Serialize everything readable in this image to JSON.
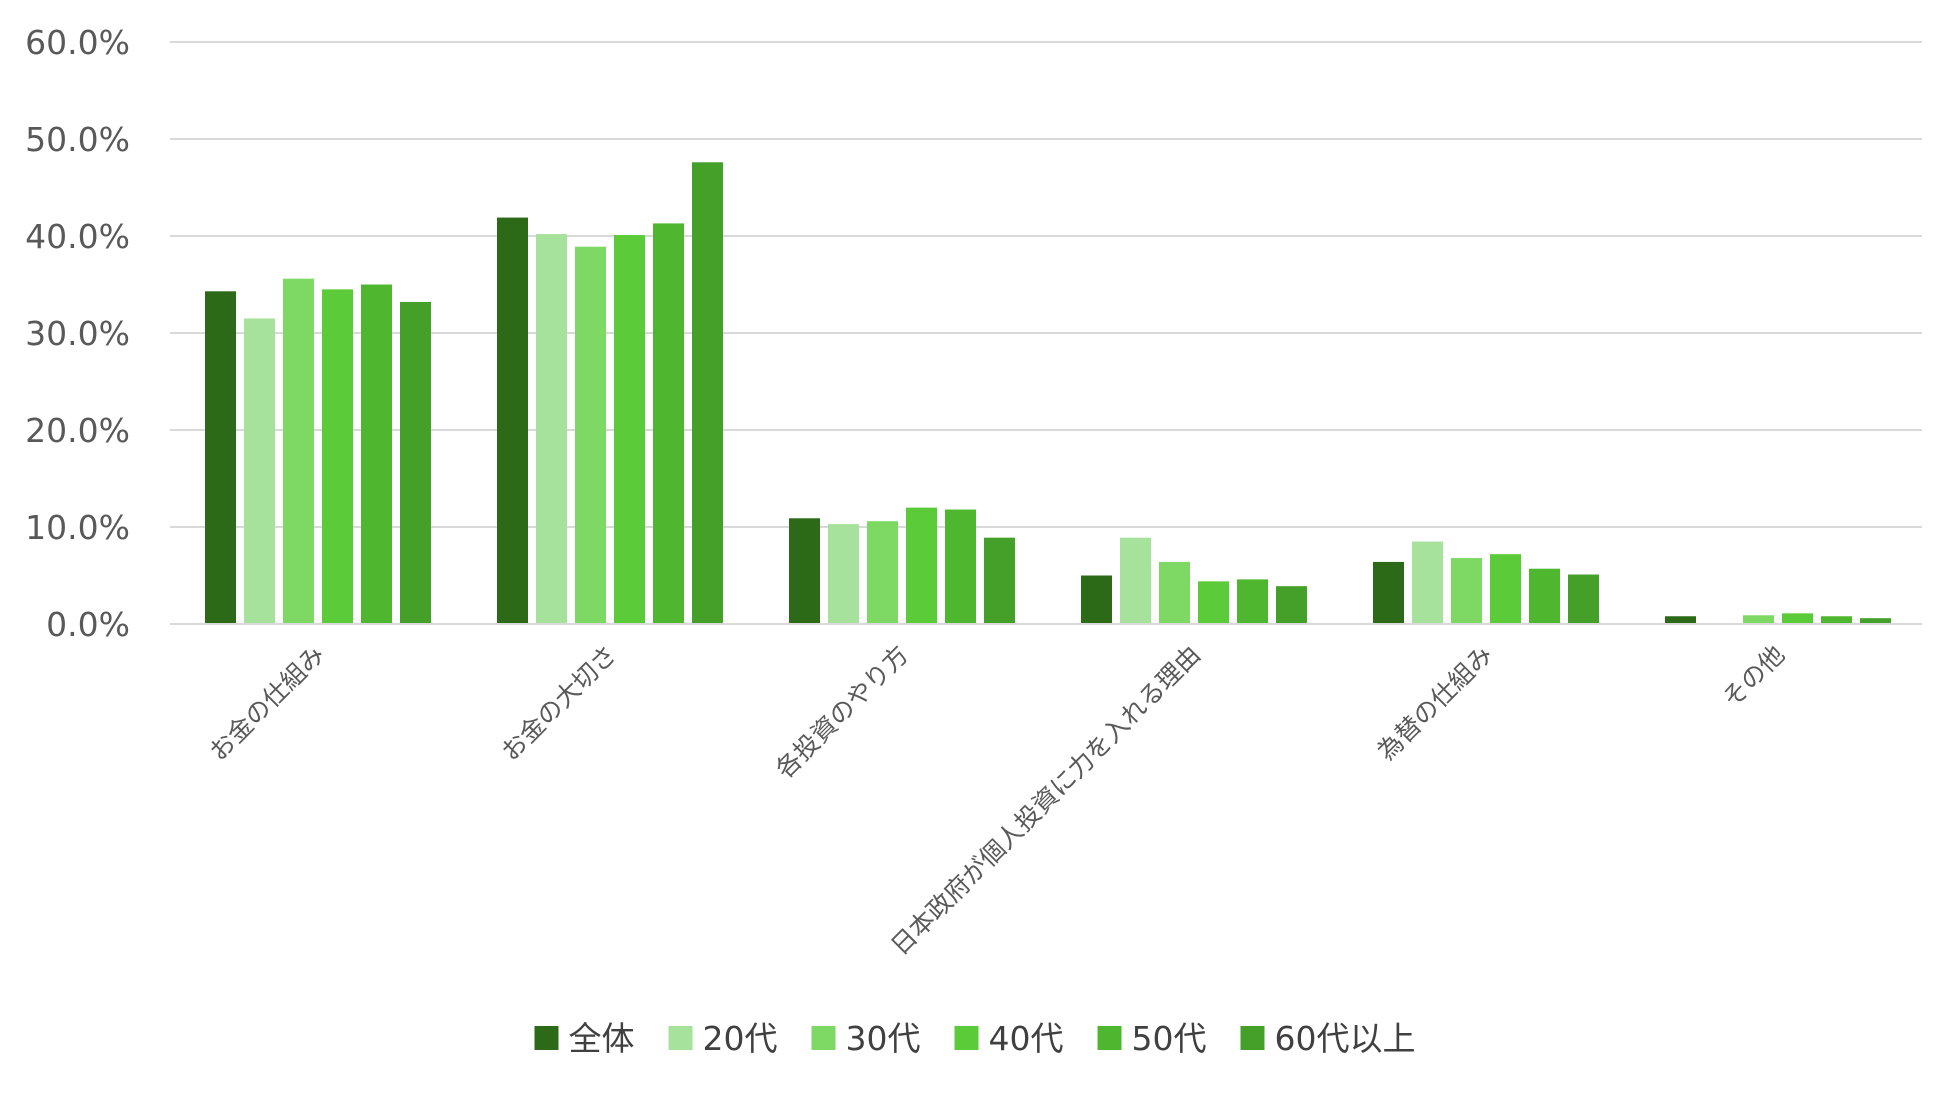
{
  "chart_data": {
    "type": "bar",
    "categories": [
      "お金の仕組み",
      "お金の大切さ",
      "各投資のやり方",
      "日本政府が個人投資に力を入れる理由",
      "為替の仕組み",
      "その他"
    ],
    "series": [
      {
        "name": "全体",
        "color": "#2d6a18",
        "values": [
          34.3,
          41.9,
          10.9,
          5.0,
          6.4,
          0.8
        ]
      },
      {
        "name": "20代",
        "color": "#a7e29c",
        "values": [
          31.5,
          40.2,
          10.3,
          8.9,
          8.5,
          0.0
        ]
      },
      {
        "name": "30代",
        "color": "#7dd964",
        "values": [
          35.6,
          38.9,
          10.6,
          6.4,
          6.8,
          0.9
        ]
      },
      {
        "name": "40代",
        "color": "#5ccb39",
        "values": [
          34.5,
          40.1,
          12.0,
          4.4,
          7.2,
          1.1
        ]
      },
      {
        "name": "50代",
        "color": "#4fb72f",
        "values": [
          35.0,
          41.3,
          11.8,
          4.6,
          5.7,
          0.8
        ]
      },
      {
        "name": "60代以上",
        "color": "#45a02a",
        "values": [
          33.2,
          47.6,
          8.9,
          3.9,
          5.1,
          0.6
        ]
      }
    ],
    "yaxis": {
      "min": 0,
      "max": 60,
      "ticks": [
        0,
        10,
        20,
        30,
        40,
        50,
        60
      ],
      "tick_labels": [
        "0.0%",
        "10.0%",
        "20.0%",
        "30.0%",
        "40.0%",
        "50.0%",
        "60.0%"
      ]
    },
    "grid": true,
    "legend_position": "bottom",
    "gridline_color": "#d9d9d9"
  }
}
